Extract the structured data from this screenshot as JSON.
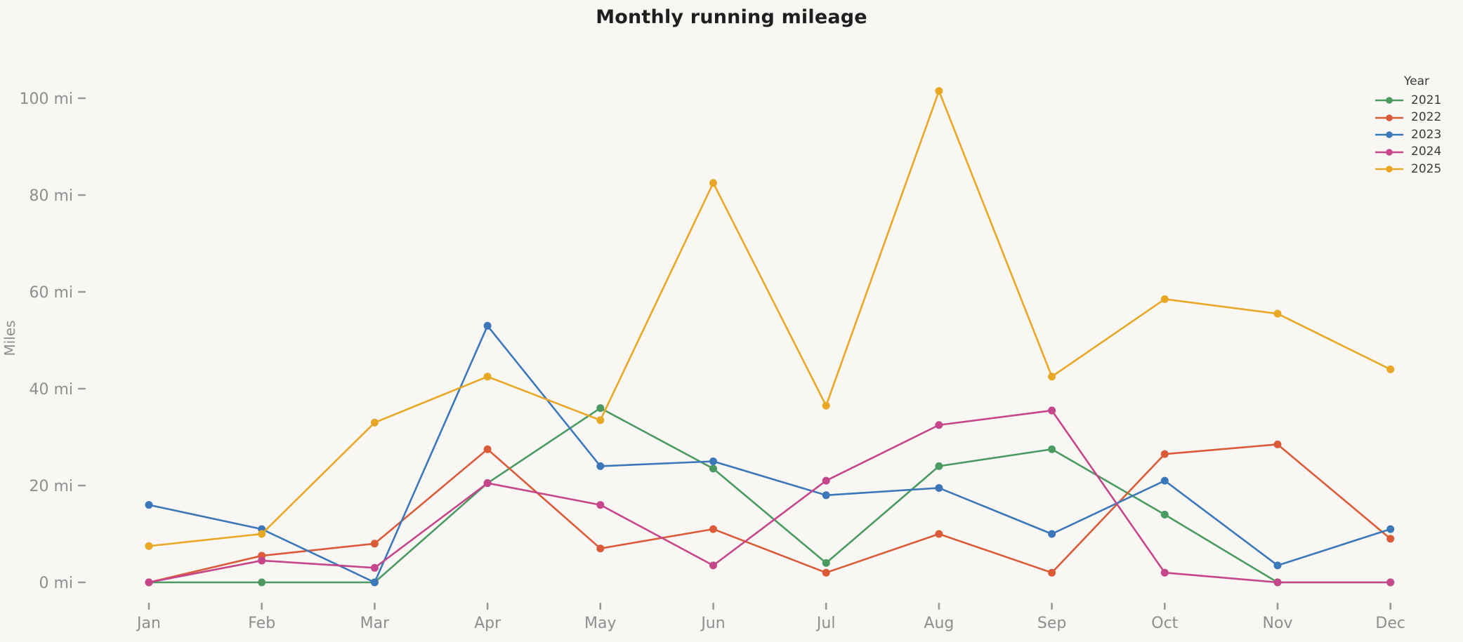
{
  "chart_data": {
    "type": "line",
    "title": "Monthly running mileage",
    "ylabel": "Miles",
    "legend_title": "Year",
    "legend_position": "top-right",
    "grid": false,
    "background_color": "#f9f7f4",
    "axis_text_color": "#8e8e8e",
    "title_color": "#1f1f1f",
    "categories": [
      "Jan",
      "Feb",
      "Mar",
      "Apr",
      "May",
      "Jun",
      "Jul",
      "Aug",
      "Sep",
      "Oct",
      "Nov",
      "Dec"
    ],
    "y_tick_values": [
      0,
      20,
      40,
      60,
      80,
      100
    ],
    "y_tick_unit": "mi",
    "y_tick_labels": [
      "0 mi",
      "20 mi",
      "40 mi",
      "60 mi",
      "80 mi",
      "100 mi"
    ],
    "ylim": [
      0,
      105
    ],
    "series": [
      {
        "name": "2021",
        "color": "#4a9a62",
        "values": [
          0,
          0,
          0,
          20.5,
          36,
          23.5,
          4,
          24,
          27.5,
          14,
          0,
          0
        ]
      },
      {
        "name": "2022",
        "color": "#db5a38",
        "values": [
          0,
          5.5,
          8,
          27.5,
          7,
          11,
          2,
          10,
          2,
          26.5,
          28.5,
          9
        ]
      },
      {
        "name": "2023",
        "color": "#3c78b9",
        "values": [
          16,
          11,
          0,
          53,
          24,
          25,
          18,
          19.5,
          10,
          21,
          3.5,
          11
        ]
      },
      {
        "name": "2024",
        "color": "#c5468a",
        "values": [
          0,
          4.5,
          3,
          20.5,
          16,
          3.5,
          21,
          32.5,
          35.5,
          2,
          0,
          0
        ]
      },
      {
        "name": "2025",
        "color": "#e8a825",
        "values": [
          7.5,
          10,
          33,
          42.5,
          33.5,
          82.5,
          36.5,
          101.5,
          42.5,
          58.5,
          55.5,
          44
        ]
      }
    ]
  }
}
